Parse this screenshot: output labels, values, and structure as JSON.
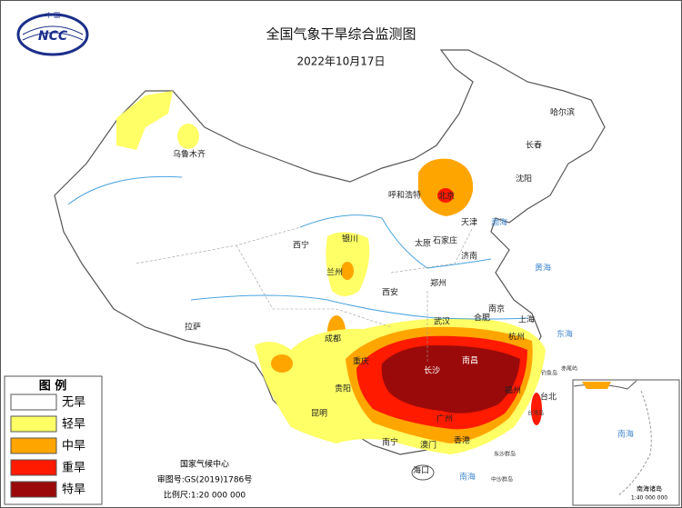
{
  "header": {
    "title": "全国气象干旱综合监测图",
    "date": "2022年10月17日",
    "logo_top": "中 国",
    "logo_text": "NCC"
  },
  "legend": {
    "title": "图 例",
    "items": [
      {
        "label": "无旱",
        "color": "#ffffff"
      },
      {
        "label": "轻旱",
        "color": "#ffff66"
      },
      {
        "label": "中旱",
        "color": "#ffa500"
      },
      {
        "label": "重旱",
        "color": "#ff1a00"
      },
      {
        "label": "特旱",
        "color": "#9b0a0a"
      }
    ]
  },
  "cities": [
    "哈尔滨",
    "长春",
    "沈阳",
    "乌鲁木齐",
    "呼和浩特",
    "北京",
    "天津",
    "石家庄",
    "太原",
    "济南",
    "西宁",
    "银川",
    "兰州",
    "郑州",
    "西安",
    "南京",
    "合肥",
    "上海",
    "武汉",
    "杭州",
    "成都",
    "拉萨",
    "重庆",
    "长沙",
    "南昌",
    "贵阳",
    "福州",
    "台北",
    "昆明",
    "南宁",
    "广州",
    "澳门",
    "香港",
    "海口"
  ],
  "islands": [
    "钓鱼岛",
    "赤尾屿",
    "台湾岛",
    "东沙群岛",
    "中沙群岛"
  ],
  "seas": [
    "渤海",
    "黄海",
    "东海",
    "南海"
  ],
  "footer": {
    "org": "国家气候中心",
    "approval": "审图号:GS(2019)1786号",
    "scale": "比例尺:1:20 000 000"
  },
  "inset": {
    "sea": "南海",
    "label": "南海诸岛",
    "scale": "1:40 000 000"
  }
}
